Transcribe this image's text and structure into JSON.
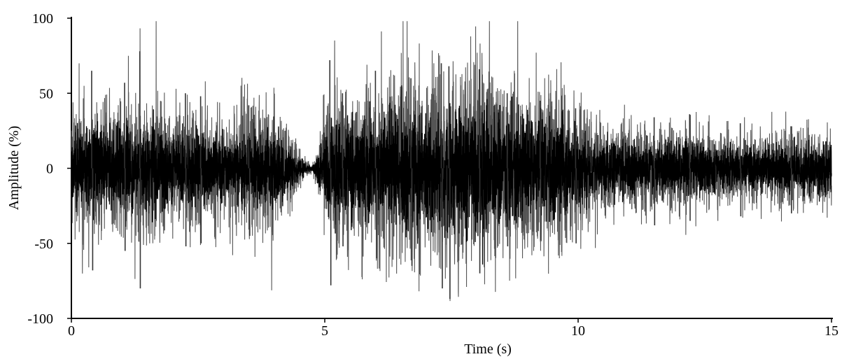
{
  "chart_data": {
    "type": "line",
    "title": "",
    "xlabel": "Time (s)",
    "ylabel": "Amplitude (%)",
    "xlim": [
      0,
      15
    ],
    "ylim": [
      -100,
      100
    ],
    "x_ticks": [
      0,
      5,
      10,
      15
    ],
    "y_ticks": [
      100,
      50,
      0,
      -50,
      -100
    ],
    "grid": false,
    "legend": "none",
    "series_color": "#000000",
    "series": [
      {
        "name": "",
        "envelope": {
          "t": [
            0.0,
            0.5,
            1.0,
            1.5,
            2.0,
            2.5,
            3.0,
            3.5,
            4.0,
            4.3,
            4.6,
            4.75,
            4.9,
            5.2,
            5.5,
            6.0,
            6.5,
            7.0,
            7.5,
            8.0,
            8.5,
            9.0,
            9.5,
            10.0,
            10.3,
            10.5,
            11.0,
            11.5,
            12.0,
            12.5,
            13.0,
            13.5,
            14.0,
            14.5,
            15.0
          ],
          "amp": [
            22,
            25,
            24,
            26,
            20,
            24,
            18,
            22,
            25,
            14,
            4,
            1,
            12,
            32,
            30,
            28,
            35,
            34,
            36,
            38,
            33,
            30,
            28,
            25,
            18,
            15,
            16,
            14,
            16,
            14,
            13,
            12,
            14,
            14,
            15
          ]
        },
        "peaks": [
          {
            "t": 0.4,
            "v": 65
          },
          {
            "t": 0.42,
            "v": -68
          },
          {
            "t": 1.05,
            "v": 57
          },
          {
            "t": 1.06,
            "v": -55
          },
          {
            "t": 1.35,
            "v": 78
          },
          {
            "t": 1.36,
            "v": -80
          },
          {
            "t": 2.25,
            "v": 50
          },
          {
            "t": 2.26,
            "v": -52
          },
          {
            "t": 2.55,
            "v": 48
          },
          {
            "t": 2.56,
            "v": -50
          },
          {
            "t": 3.5,
            "v": 42
          },
          {
            "t": 3.52,
            "v": -45
          },
          {
            "t": 5.1,
            "v": 72
          },
          {
            "t": 5.12,
            "v": -78
          },
          {
            "t": 5.35,
            "v": 50
          },
          {
            "t": 5.36,
            "v": -52
          },
          {
            "t": 6.0,
            "v": 65
          },
          {
            "t": 6.02,
            "v": -60
          },
          {
            "t": 6.7,
            "v": 60
          },
          {
            "t": 6.72,
            "v": -65
          },
          {
            "t": 7.3,
            "v": 70
          },
          {
            "t": 7.32,
            "v": -80
          },
          {
            "t": 7.45,
            "v": 68
          },
          {
            "t": 7.47,
            "v": -87
          },
          {
            "t": 8.05,
            "v": 66
          },
          {
            "t": 8.06,
            "v": -70
          },
          {
            "t": 8.6,
            "v": 50
          },
          {
            "t": 8.61,
            "v": -52
          },
          {
            "t": 9.25,
            "v": 45
          },
          {
            "t": 9.26,
            "v": -48
          },
          {
            "t": 9.95,
            "v": 40
          },
          {
            "t": 9.96,
            "v": -50
          },
          {
            "t": 11.5,
            "v": 34
          },
          {
            "t": 11.51,
            "v": -38
          },
          {
            "t": 12.2,
            "v": 36
          },
          {
            "t": 12.21,
            "v": -35
          },
          {
            "t": 13.2,
            "v": 30
          },
          {
            "t": 13.21,
            "v": -32
          },
          {
            "t": 14.2,
            "v": 28
          },
          {
            "t": 14.21,
            "v": -30
          }
        ]
      }
    ]
  }
}
